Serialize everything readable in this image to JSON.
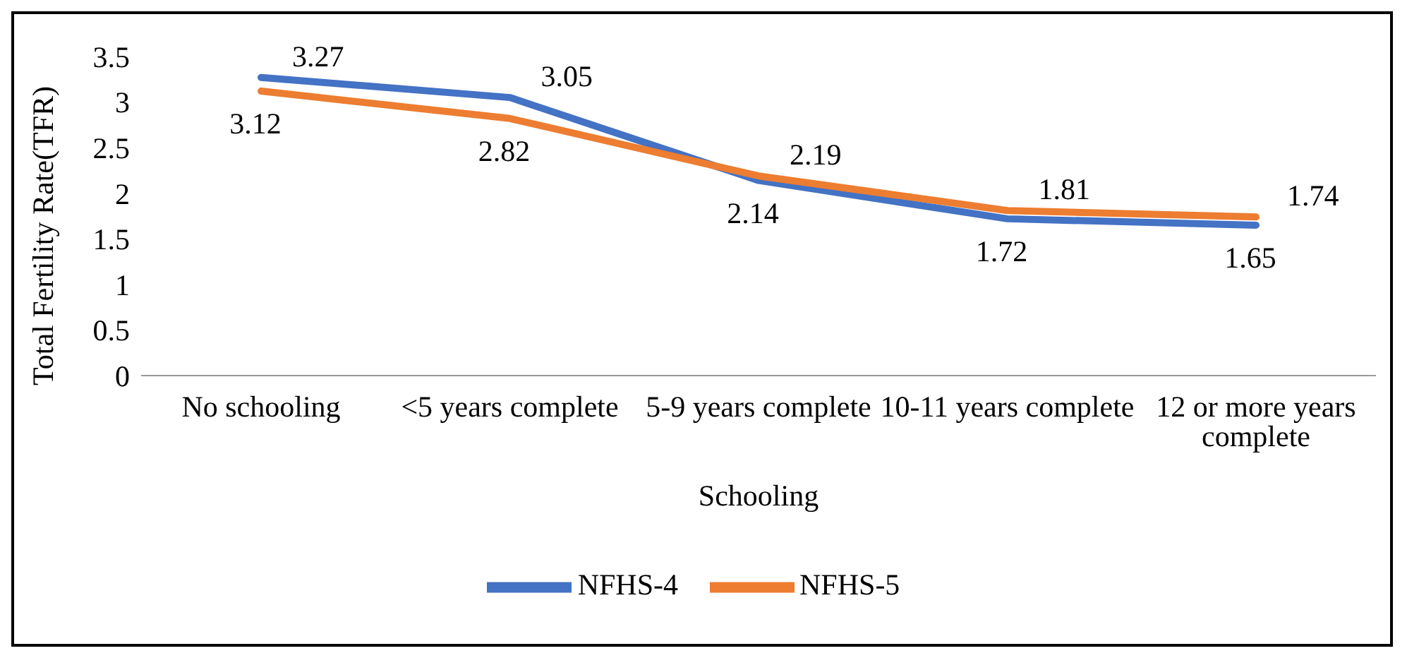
{
  "chart_data": {
    "type": "line",
    "xlabel": "Schooling",
    "ylabel": "Total Fertility Rate(TFR)",
    "categories": [
      "No schooling",
      "<5 years complete",
      "5-9 years complete",
      "10-11 years complete",
      "12 or more years complete"
    ],
    "series": [
      {
        "name": "NFHS-4",
        "color": "#4472c4",
        "values": [
          3.27,
          3.05,
          2.14,
          1.72,
          1.65
        ]
      },
      {
        "name": "NFHS-5",
        "color": "#ed7d31",
        "values": [
          3.12,
          2.82,
          2.19,
          1.81,
          1.74
        ]
      }
    ],
    "ylim": [
      0,
      3.5
    ],
    "yticks": [
      0,
      0.5,
      1,
      1.5,
      2,
      2.5,
      3,
      3.5
    ],
    "grid": false,
    "legend": "bottom",
    "marker": "none",
    "line_style": "solid",
    "data_labels": true
  }
}
